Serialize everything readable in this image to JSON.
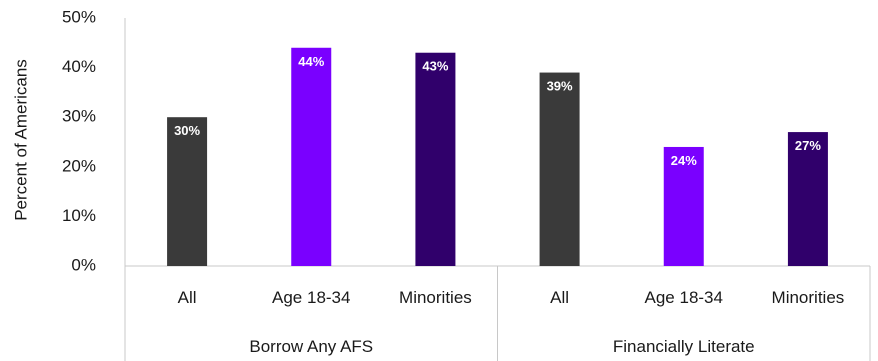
{
  "chart_data": {
    "type": "bar",
    "title": "",
    "ylabel": "Percent of Americans",
    "ylim": [
      0,
      50
    ],
    "yticks": [
      "0%",
      "10%",
      "20%",
      "30%",
      "40%",
      "50%"
    ],
    "grid": false,
    "groups": [
      {
        "label": "Borrow Any AFS",
        "bars": [
          {
            "category": "All",
            "value": 30,
            "label": "30%",
            "color": "#3a3a3a"
          },
          {
            "category": "Age 18-34",
            "value": 44,
            "label": "44%",
            "color": "#7a00ff"
          },
          {
            "category": "Minorities",
            "value": 43,
            "label": "43%",
            "color": "#30006b"
          }
        ]
      },
      {
        "label": "Financially Literate",
        "bars": [
          {
            "category": "All",
            "value": 39,
            "label": "39%",
            "color": "#3a3a3a"
          },
          {
            "category": "Age 18-34",
            "value": 24,
            "label": "24%",
            "color": "#7a00ff"
          },
          {
            "category": "Minorities",
            "value": 27,
            "label": "27%",
            "color": "#30006b"
          }
        ]
      }
    ]
  }
}
